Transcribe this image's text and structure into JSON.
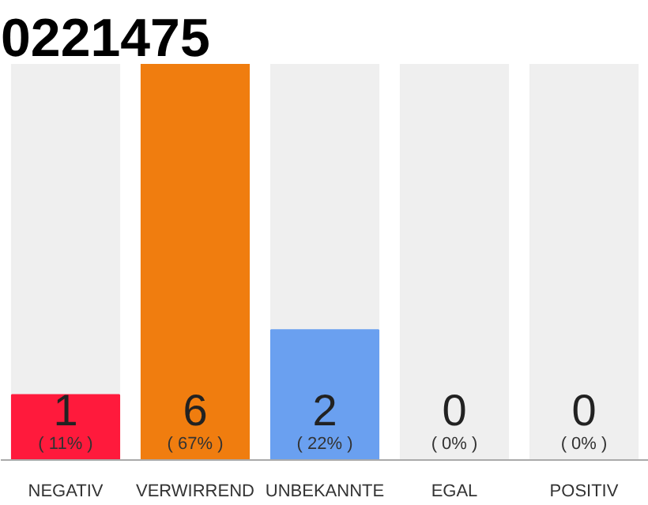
{
  "chart_data": {
    "type": "bar",
    "title": "0221475",
    "categories": [
      "NEGATIV",
      "VERWIRREND",
      "UNBEKANNTE",
      "EGAL",
      "POSITIV"
    ],
    "values": [
      11,
      67,
      22,
      0,
      0
    ],
    "colors": [
      "#ff1a3c",
      "#f07d0f",
      "#6aa0f0",
      "#aaaaaa",
      "#aaaaaa"
    ],
    "value_labels": [
      "( 11% )",
      "( 67% )",
      "( 22% )",
      "( 0% )",
      "( 0% )"
    ],
    "annotations": [
      "1",
      "6",
      "2",
      "0",
      "0"
    ]
  }
}
